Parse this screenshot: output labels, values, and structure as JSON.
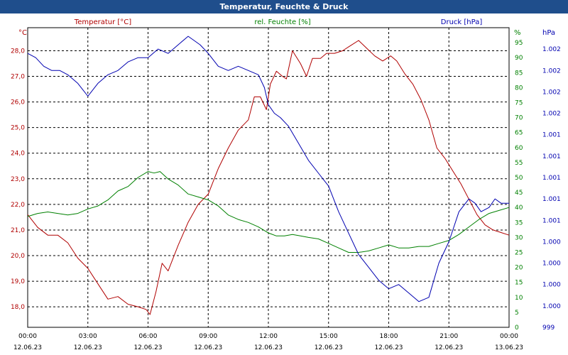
{
  "window": {
    "title": "Temperatur, Feuchte & Druck"
  },
  "chart_data": {
    "type": "line",
    "title": "Temperatur, Feuchte & Druck",
    "legend": [
      {
        "name": "Temperatur [°C]",
        "color": "#b00000"
      },
      {
        "name": "rel. Feuchte [%]",
        "color": "#008000"
      },
      {
        "name": "Druck [hPa]",
        "color": "#0000b0"
      }
    ],
    "axes": {
      "left": {
        "unit": "°C",
        "min": 17.2,
        "max": 28.9,
        "ticks": [
          "18,0",
          "19,0",
          "20,0",
          "21,0",
          "22,0",
          "23,0",
          "24,0",
          "25,0",
          "26,0",
          "27,0",
          "28,0"
        ],
        "color": "#b00000"
      },
      "right1": {
        "unit": "%",
        "min": 0,
        "max": 100,
        "ticks": [
          "0",
          "5",
          "10",
          "15",
          "20",
          "25",
          "30",
          "35",
          "40",
          "45",
          "50",
          "55",
          "60",
          "65",
          "70",
          "75",
          "80",
          "85",
          "90",
          "95"
        ],
        "color": "#008000"
      },
      "right2": {
        "unit": "hPa",
        "min": 999,
        "max": 1002.5,
        "ticks": [
          "999",
          "1.000",
          "1.000",
          "1.000",
          "1.000",
          "1.001",
          "1.001",
          "1.001",
          "1.001",
          "1.001",
          "1.002",
          "1.002",
          "1.002",
          "1.002"
        ],
        "color": "#0000b0"
      }
    },
    "x_ticks": [
      {
        "time": "00:00",
        "date": "12.06.23"
      },
      {
        "time": "03:00",
        "date": "12.06.23"
      },
      {
        "time": "06:00",
        "date": "12.06.23"
      },
      {
        "time": "09:00",
        "date": "12.06.23"
      },
      {
        "time": "12:00",
        "date": "12.06.23"
      },
      {
        "time": "15:00",
        "date": "12.06.23"
      },
      {
        "time": "18:00",
        "date": "12.06.23"
      },
      {
        "time": "21:00",
        "date": "12.06.23"
      },
      {
        "time": "00:00",
        "date": "13.06.23"
      }
    ],
    "x_range_hours": [
      0,
      24
    ],
    "series": [
      {
        "name": "Temperatur",
        "axis": "left",
        "x": [
          0,
          0.5,
          1,
          1.5,
          2,
          2.5,
          3,
          3.5,
          4,
          4.5,
          5,
          5.5,
          5.9,
          6.1,
          6.4,
          6.7,
          7,
          7.5,
          8,
          8.5,
          9,
          9.5,
          10,
          10.5,
          11,
          11.3,
          11.6,
          11.9,
          12.1,
          12.4,
          12.7,
          12.9,
          13.2,
          13.6,
          13.9,
          14.2,
          14.6,
          14.9,
          15.3,
          15.7,
          16.1,
          16.5,
          16.9,
          17.3,
          17.7,
          18.1,
          18.4,
          18.8,
          19.2,
          19.6,
          20,
          20.4,
          20.8,
          21.2,
          21.6,
          22,
          22.4,
          22.8,
          23.2,
          23.6,
          24
        ],
        "values": [
          21.6,
          21.1,
          20.8,
          20.8,
          20.5,
          19.9,
          19.5,
          18.9,
          18.3,
          18.4,
          18.1,
          18.0,
          17.9,
          17.7,
          18.6,
          19.7,
          19.4,
          20.4,
          21.3,
          22.0,
          22.4,
          23.4,
          24.2,
          24.9,
          25.3,
          26.2,
          26.2,
          25.7,
          26.7,
          27.2,
          27.0,
          26.9,
          28.0,
          27.5,
          27.0,
          27.7,
          27.7,
          27.9,
          27.9,
          28.0,
          28.2,
          28.4,
          28.1,
          27.8,
          27.6,
          27.8,
          27.6,
          27.1,
          26.7,
          26.1,
          25.3,
          24.2,
          23.8,
          23.3,
          22.8,
          22.2,
          21.6,
          21.2,
          21.0,
          20.9,
          20.8
        ]
      },
      {
        "name": "rel. Feuchte",
        "axis": "right1",
        "x": [
          0,
          0.5,
          1,
          1.5,
          2,
          2.5,
          3,
          3.5,
          4,
          4.5,
          5,
          5.5,
          6,
          6.3,
          6.6,
          7,
          7.5,
          8,
          8.5,
          9,
          9.5,
          10,
          10.5,
          11,
          11.5,
          12,
          12.4,
          12.8,
          13.2,
          13.6,
          14,
          14.5,
          15,
          15.5,
          16,
          16.5,
          17,
          17.5,
          18,
          18.5,
          19,
          19.5,
          20,
          20.5,
          21,
          21.5,
          22,
          22.5,
          23,
          23.5,
          24
        ],
        "values": [
          37,
          38,
          38.5,
          38,
          37.5,
          38,
          39.5,
          40.5,
          42.5,
          45.5,
          47,
          50,
          52,
          51.5,
          52,
          49.5,
          47.5,
          44.5,
          43.5,
          42.5,
          40.5,
          37.5,
          36,
          35,
          33.5,
          31.5,
          30.5,
          30.5,
          31,
          30.5,
          30,
          29.5,
          28,
          26.5,
          25,
          25,
          25.5,
          26.5,
          27.5,
          26.5,
          26.5,
          27,
          27,
          28,
          29,
          31,
          33.5,
          36,
          38,
          39,
          40
        ]
      },
      {
        "name": "Druck",
        "axis": "right2",
        "x": [
          0,
          0.4,
          0.8,
          1.2,
          1.6,
          2,
          2.5,
          3,
          3.5,
          4,
          4.5,
          5,
          5.5,
          6,
          6.5,
          7,
          7.5,
          8,
          8.3,
          8.6,
          9,
          9.5,
          10,
          10.5,
          11,
          11.5,
          11.8,
          12,
          12.3,
          12.6,
          13,
          13.5,
          14,
          14.5,
          15,
          15.5,
          16,
          16.5,
          17,
          17.5,
          18,
          18.5,
          19,
          19.5,
          20,
          20.5,
          21,
          21.5,
          22,
          22.3,
          22.6,
          23,
          23.3,
          23.6,
          24
        ],
        "values": [
          1002.2,
          1002.15,
          1002.05,
          1002.0,
          1002.0,
          1001.95,
          1001.85,
          1001.7,
          1001.85,
          1001.95,
          1002.0,
          1002.1,
          1002.15,
          1002.15,
          1002.25,
          1002.2,
          1002.3,
          1002.4,
          1002.35,
          1002.3,
          1002.2,
          1002.05,
          1002.0,
          1002.05,
          1002.0,
          1001.95,
          1001.8,
          1001.6,
          1001.5,
          1001.45,
          1001.35,
          1001.15,
          1000.95,
          1000.8,
          1000.65,
          1000.35,
          1000.1,
          999.85,
          999.7,
          999.55,
          999.45,
          999.5,
          999.4,
          999.3,
          999.35,
          999.75,
          1000.0,
          1000.35,
          1000.5,
          1000.45,
          1000.35,
          1000.4,
          1000.5,
          1000.45,
          1000.45
        ]
      }
    ]
  }
}
